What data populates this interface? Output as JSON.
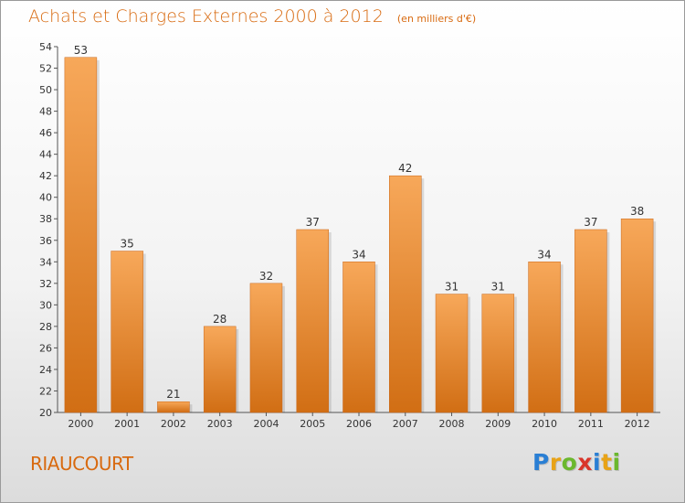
{
  "header": {
    "title": "Achats et Charges Externes 2000 à 2012",
    "subtitle": "(en milliers d'€)"
  },
  "footer": {
    "place": "RIAUCOURT",
    "brand_letters": [
      "P",
      "r",
      "o",
      "x",
      "i",
      "t",
      "i"
    ],
    "brand_colors": [
      "#2a7fd4",
      "#e8a317",
      "#6bb82d",
      "#d9352a",
      "#2a7fd4",
      "#e8a317",
      "#6bb82d"
    ]
  },
  "colors": {
    "bar_light": "#f7a85a",
    "bar_dark": "#d16e14",
    "title": "#d86a10",
    "axis": "#555555"
  },
  "chart_data": {
    "type": "bar",
    "categories": [
      "2000",
      "2001",
      "2002",
      "2003",
      "2004",
      "2005",
      "2006",
      "2007",
      "2008",
      "2009",
      "2010",
      "2011",
      "2012"
    ],
    "values": [
      53,
      35,
      21,
      28,
      32,
      37,
      34,
      42,
      31,
      31,
      34,
      37,
      38
    ],
    "ylim": [
      20,
      54
    ],
    "yticks": [
      20,
      22,
      24,
      26,
      28,
      30,
      32,
      34,
      36,
      38,
      40,
      42,
      44,
      46,
      48,
      50,
      52,
      54
    ],
    "grid": false,
    "title": "Achats et Charges Externes 2000 à 2012",
    "subtitle": "(en milliers d'€)",
    "xlabel": "",
    "ylabel": ""
  }
}
